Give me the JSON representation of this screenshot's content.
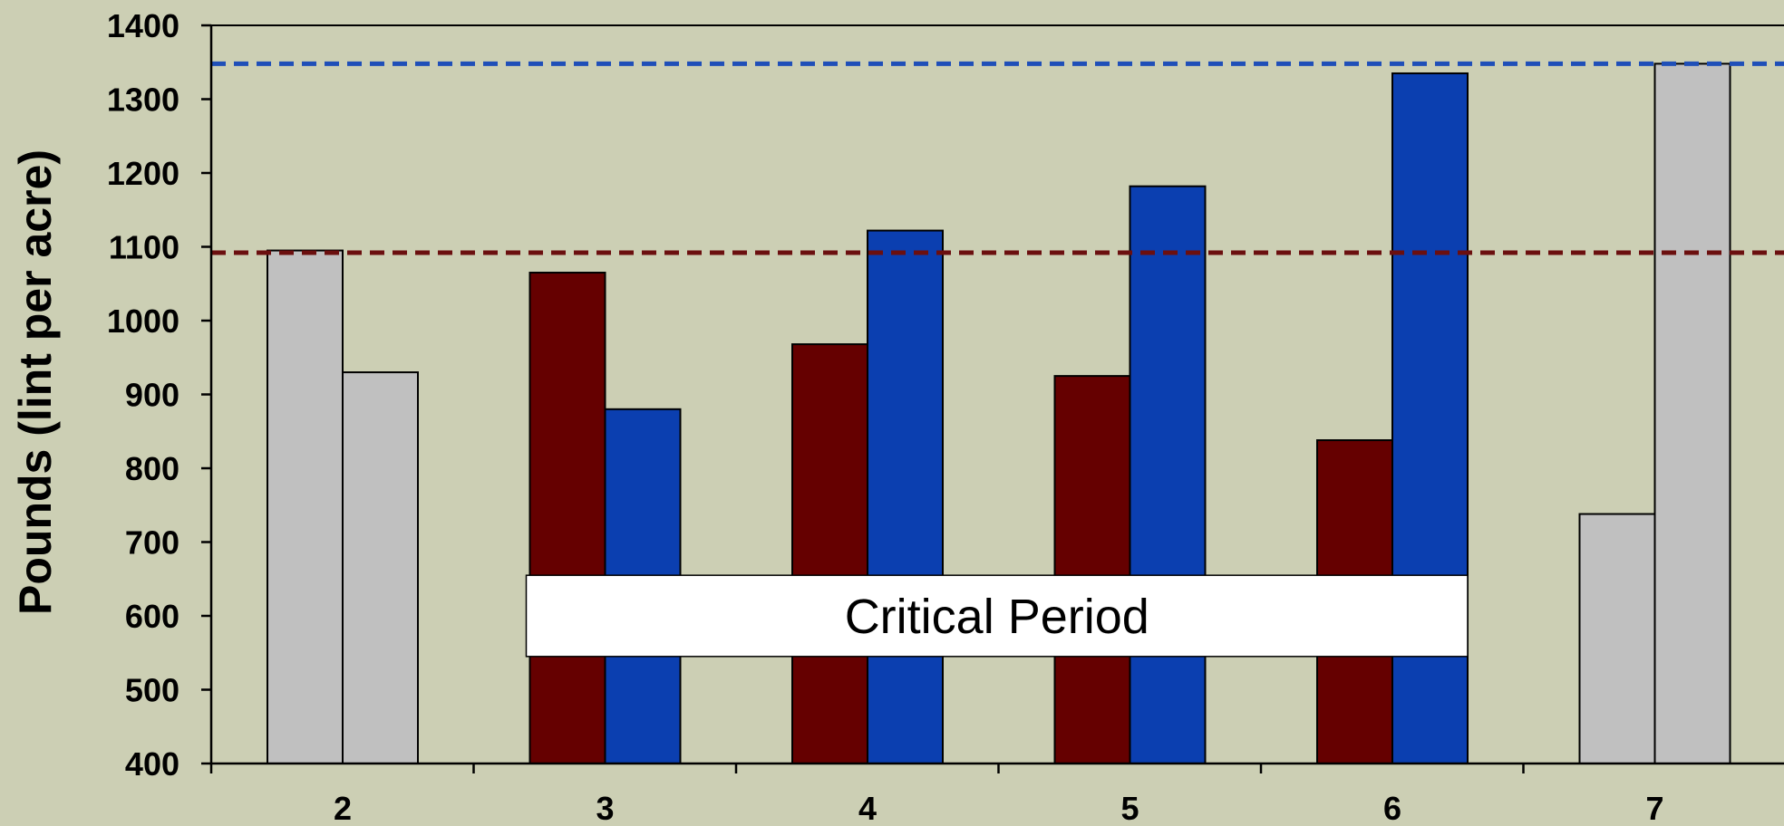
{
  "colors": {
    "background": "#cccfb4",
    "maroon": "#650000",
    "blue": "#0b3fb0",
    "gray": "#c0c0c0",
    "maroon_line": "#6b0f0f",
    "blue_line": "#1f4fb8"
  },
  "chart_data": {
    "type": "bar",
    "ylabel": "Pounds (lint per acre)",
    "ylim": [
      400,
      1400
    ],
    "yticks": [
      400,
      500,
      600,
      700,
      800,
      900,
      1000,
      1100,
      1200,
      1300,
      1400
    ],
    "categories": [
      "2",
      "3",
      "4",
      "5",
      "6",
      "7"
    ],
    "groups": [
      {
        "category": "2",
        "bars": [
          {
            "value": 1095,
            "color": "gray"
          },
          {
            "value": 930,
            "color": "gray"
          }
        ]
      },
      {
        "category": "3",
        "bars": [
          {
            "value": 1065,
            "color": "maroon"
          },
          {
            "value": 880,
            "color": "blue"
          }
        ]
      },
      {
        "category": "4",
        "bars": [
          {
            "value": 968,
            "color": "maroon"
          },
          {
            "value": 1122,
            "color": "blue"
          }
        ]
      },
      {
        "category": "5",
        "bars": [
          {
            "value": 925,
            "color": "maroon"
          },
          {
            "value": 1182,
            "color": "blue"
          }
        ]
      },
      {
        "category": "6",
        "bars": [
          {
            "value": 838,
            "color": "maroon"
          },
          {
            "value": 1335,
            "color": "blue"
          }
        ]
      },
      {
        "category": "7",
        "bars": [
          {
            "value": 738,
            "color": "gray"
          },
          {
            "value": 1348,
            "color": "gray"
          }
        ]
      }
    ],
    "reference_lines": [
      {
        "value": 1348,
        "color": "blue_line",
        "style": "dashed"
      },
      {
        "value": 1092,
        "color": "maroon_line",
        "style": "dashed"
      }
    ],
    "annotation": {
      "text": "Critical Period",
      "from_category": "3",
      "to_category": "6",
      "y_range": [
        545,
        655
      ]
    }
  }
}
